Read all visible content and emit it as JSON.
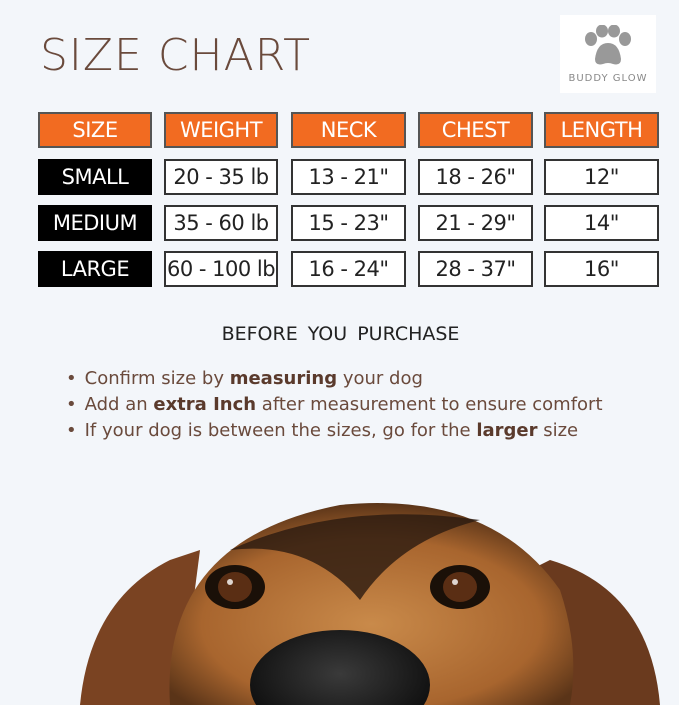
{
  "title": "SIZE CHART",
  "brand": "BUDDY GLOW",
  "table": {
    "headers": [
      "SIZE",
      "WEIGHT",
      "NECK",
      "CHEST",
      "LENGTH"
    ],
    "rows": [
      [
        "SMALL",
        "20 - 35 lb",
        "13 - 21\"",
        "18 - 26\"",
        "12\""
      ],
      [
        "MEDIUM",
        "35 - 60 lb",
        "15 - 23\"",
        "21 - 29\"",
        "14\""
      ],
      [
        "LARGE",
        "60 - 100 lb",
        "16 - 24\"",
        "28 - 37\"",
        "16\""
      ]
    ]
  },
  "notes": {
    "heading": "BEFORE  YOU PURCHASE",
    "bullets": [
      {
        "pre": "Confirm size by ",
        "bold": "measuring",
        "post": " your dog"
      },
      {
        "pre": "Add an ",
        "bold": "extra Inch",
        "post": " after measurement to ensure comfort"
      },
      {
        "pre": "If your dog is between the sizes, go for the ",
        "bold": "larger",
        "post": " size"
      }
    ]
  },
  "colors": {
    "header": "#f26b21",
    "size_cell": "#000000",
    "text": "#6a4a3c"
  }
}
